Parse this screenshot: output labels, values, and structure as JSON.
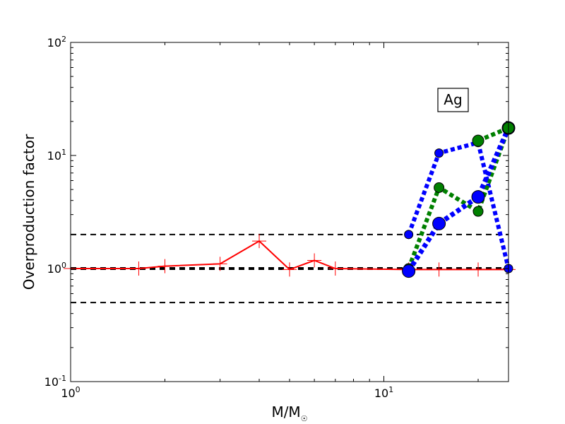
{
  "chart_data": {
    "type": "line",
    "xscale": "log",
    "yscale": "log",
    "xlim": [
      1,
      25
    ],
    "ylim": [
      0.1,
      100
    ],
    "xlabel": "M/M",
    "xlabel_sub": "☉",
    "ylabel": "Overproduction factor",
    "annotation": "Ag",
    "grid": false,
    "x_ticks": [
      {
        "value": 1,
        "base": "10",
        "exp": "0"
      },
      {
        "value": 10,
        "base": "10",
        "exp": "1"
      }
    ],
    "y_ticks": [
      {
        "value": 0.1,
        "base": "10",
        "exp": "-1"
      },
      {
        "value": 1,
        "base": "10",
        "exp": "0"
      },
      {
        "value": 10,
        "base": "10",
        "exp": "1"
      },
      {
        "value": 100,
        "base": "10",
        "exp": "2"
      }
    ],
    "reference_lines": [
      {
        "y": 2.0,
        "color": "#000000",
        "style": "dashed",
        "width": 2
      },
      {
        "y": 1.0,
        "color": "#000000",
        "style": "dashed",
        "width": 4
      },
      {
        "y": 0.5,
        "color": "#000000",
        "style": "dashed",
        "width": 2
      }
    ],
    "series": [
      {
        "color": "#ff0000",
        "style": "solid",
        "marker": "plus",
        "width": 2,
        "marker_size": 10,
        "x": [
          1.0,
          1.65,
          2.0,
          3.0,
          4.0,
          5.0,
          6.0,
          7.0,
          12.0,
          15.0,
          20.0,
          25.0
        ],
        "y": [
          1.0,
          1.0,
          1.05,
          1.1,
          1.75,
          0.98,
          1.18,
          1.0,
          0.98,
          0.98,
          0.98,
          0.98
        ]
      },
      {
        "color": "#0000ff",
        "style": "dotted",
        "marker": "circle",
        "width": 6,
        "marker_size": 6,
        "x": [
          12.0,
          15.0,
          20.0,
          25.0
        ],
        "y": [
          2.0,
          10.5,
          13.0,
          1.0
        ]
      },
      {
        "color": "#008000",
        "style": "dotted",
        "marker": "circle",
        "width": 6,
        "marker_size": 7,
        "x": [
          12.0,
          15.0,
          20.0,
          25.0
        ],
        "y": [
          1.0,
          5.2,
          3.2,
          17.5
        ]
      },
      {
        "color": "#0000ff",
        "style": "dotted",
        "marker": "circle",
        "width": 7,
        "marker_size": 9,
        "x": [
          12.0,
          15.0,
          20.0,
          25.0
        ],
        "y": [
          0.95,
          2.5,
          4.3,
          17.5
        ]
      },
      {
        "color": "#008000",
        "style": "dotted",
        "marker": "circle",
        "width": 6,
        "marker_size": 8,
        "x": [
          20.0,
          25.0
        ],
        "y": [
          13.5,
          17.5
        ]
      }
    ]
  }
}
